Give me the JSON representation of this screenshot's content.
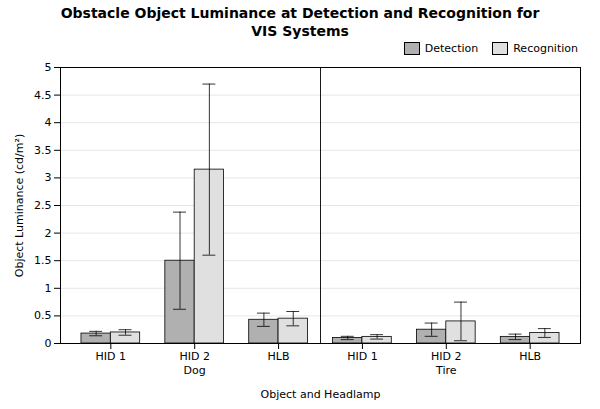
{
  "chart_data": {
    "type": "bar",
    "title": "Obstacle Object Luminance at Detection and Recognition for\nVIS Systems",
    "xlabel": "Object and Headlamp",
    "ylabel": "Object Luminance (cd/m²)",
    "categories": [
      "HID 1",
      "HID 2",
      "HLB",
      "HID 1",
      "HID 2",
      "HLB"
    ],
    "groups": [
      {
        "label": "Dog",
        "count": 3
      },
      {
        "label": "Tire",
        "count": 3
      }
    ],
    "series": [
      {
        "name": "Detection",
        "color": "#b0b0b0",
        "values": [
          0.18,
          1.5,
          0.43,
          0.1,
          0.25,
          0.12
        ],
        "errors": [
          0.04,
          0.88,
          0.12,
          0.03,
          0.12,
          0.05
        ]
      },
      {
        "name": "Recognition",
        "color": "#e0e0e0",
        "values": [
          0.2,
          3.15,
          0.45,
          0.12,
          0.4,
          0.19
        ],
        "errors": [
          0.05,
          1.55,
          0.13,
          0.04,
          0.35,
          0.08
        ]
      }
    ],
    "ylim": [
      0,
      5
    ],
    "yticks": [
      0,
      0.5,
      1,
      1.5,
      2,
      2.5,
      3,
      3.5,
      4,
      4.5,
      5
    ],
    "grid": true,
    "legend": "upper right"
  }
}
